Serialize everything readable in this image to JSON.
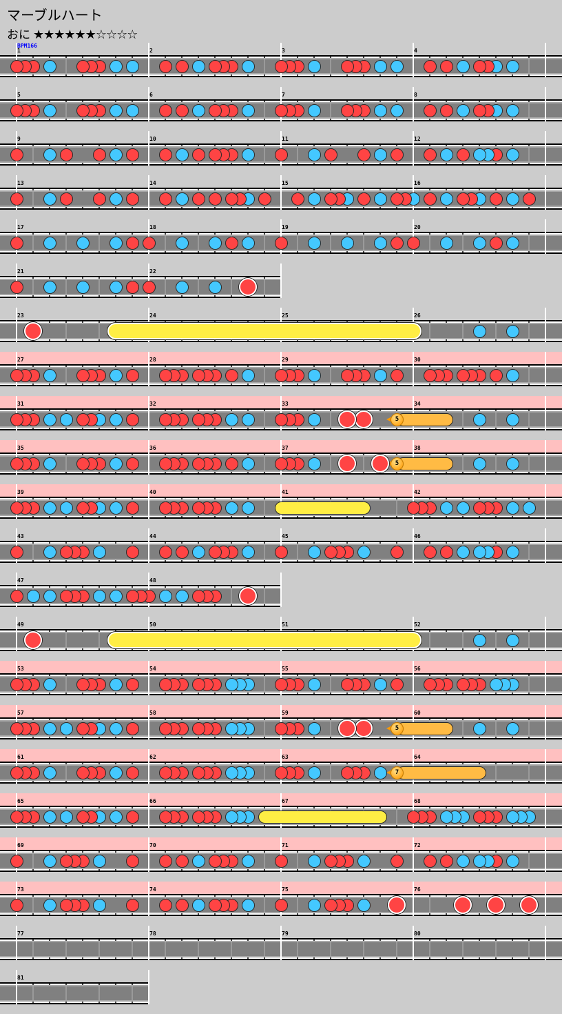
{
  "title": "マーブルハート",
  "difficulty": {
    "label": "おに",
    "stars": "★★★★★★☆☆☆☆",
    "stars_filled": 6,
    "stars_total": 10
  },
  "bpm_label": "BPM166",
  "colors": {
    "don": "#ff4444",
    "ka": "#44c8ff",
    "roll": "#ffee44",
    "balloon": "#ffbb44",
    "gogo": "#ffc0c0",
    "lane": "#808080",
    "background": "#cccccc",
    "bpm": "#0000ff"
  },
  "note_legend": {
    "d": "don",
    "k": "ka",
    "D": "big don",
    "0": "none"
  },
  "rows": [
    {
      "gogo": false,
      "measures": [
        {
          "number": "1",
          "notes": "ddd0k000ddd0k0k0"
        },
        {
          "number": "2",
          "notes": "00d0d0k0ddd0k000"
        },
        {
          "number": "3",
          "notes": "ddd0k000ddd0k0k0"
        },
        {
          "number": "4",
          "notes": "00d0d0k0ddk0k000"
        }
      ]
    },
    {
      "gogo": false,
      "measures": [
        {
          "number": "5",
          "notes": "ddd0k000ddd0k0k0"
        },
        {
          "number": "6",
          "notes": "00d0d0k0ddd0k000"
        },
        {
          "number": "7",
          "notes": "ddd0k000ddd0k0k0"
        },
        {
          "number": "8",
          "notes": "00d0d0k0ddk0k000"
        }
      ]
    },
    {
      "gogo": false,
      "measures": [
        {
          "number": "9",
          "notes": "d000k0d000d0k0d0"
        },
        {
          "number": "10",
          "notes": "00d0k0d0ddd0k000"
        },
        {
          "number": "11",
          "notes": "d000k0d000d0k0d0"
        },
        {
          "number": "12",
          "notes": "00d0k0d0kkd0k000"
        }
      ]
    },
    {
      "gogo": false,
      "measures": [
        {
          "number": "13",
          "notes": "d000k0d000d0k0d0"
        },
        {
          "number": "14",
          "notes": "00d0k0d0d0ddk0d0"
        },
        {
          "number": "15",
          "notes": "00d0k0ddk0d0k0dd"
        },
        {
          "number": "16",
          "notes": "k0d0k0ddk0d0k0d0"
        }
      ]
    },
    {
      "gogo": false,
      "measures": [
        {
          "number": "17",
          "notes": "d000k000k000k0d0"
        },
        {
          "number": "18",
          "notes": "d000k000k0d0k000"
        },
        {
          "number": "19",
          "notes": "d000k000k000k0d0"
        },
        {
          "number": "20",
          "notes": "d000k000k0d0k000"
        }
      ]
    },
    {
      "gogo": false,
      "measures": [
        {
          "number": "21",
          "notes": "d000k000k000k0d0"
        },
        {
          "number": "22",
          "notes": "d000k000k000D000"
        }
      ]
    },
    {
      "gogo": false,
      "measures": [
        {
          "number": "23",
          "notes": "00D0000000000000"
        },
        {
          "number": "24",
          "notes": "0000000000000000"
        },
        {
          "number": "25",
          "notes": "0000000000000000"
        },
        {
          "number": "26",
          "notes": "00000000k000k000"
        }
      ]
    },
    {
      "gogo": true,
      "measures": [
        {
          "number": "27",
          "notes": "ddd0k000ddd0k0d0"
        },
        {
          "number": "28",
          "notes": "00ddd0ddd0d0k000"
        },
        {
          "number": "29",
          "notes": "ddd0k000ddd0k0d0"
        },
        {
          "number": "30",
          "notes": "00ddd0ddd0d0k000"
        }
      ]
    },
    {
      "gogo": true,
      "measures": [
        {
          "number": "31",
          "notes": "ddd0k0k0ddk0k0d0"
        },
        {
          "number": "32",
          "notes": "00ddd0ddd0k0k000"
        },
        {
          "number": "33",
          "notes": "ddd0k000D0D00000"
        },
        {
          "number": "34",
          "notes": "00000000k000k000"
        }
      ]
    },
    {
      "gogo": true,
      "measures": [
        {
          "number": "35",
          "notes": "ddd0k000ddd0k0d0"
        },
        {
          "number": "36",
          "notes": "00ddd0ddd0d0k000"
        },
        {
          "number": "37",
          "notes": "ddd0k000D000D000"
        },
        {
          "number": "38",
          "notes": "00000000k000k000"
        }
      ]
    },
    {
      "gogo": true,
      "measures": [
        {
          "number": "39",
          "notes": "ddd0k0k0ddk0k0d0"
        },
        {
          "number": "40",
          "notes": "00ddd0ddd0k0k000"
        },
        {
          "number": "41",
          "notes": "0000000000000000"
        },
        {
          "number": "42",
          "notes": "ddd0k0k0ddd0k0k0"
        }
      ]
    },
    {
      "gogo": false,
      "measures": [
        {
          "number": "43",
          "notes": "d000k0ddd0k000d0"
        },
        {
          "number": "44",
          "notes": "00d0d0k0ddd0k000"
        },
        {
          "number": "45",
          "notes": "d000k0ddd0k000d0"
        },
        {
          "number": "46",
          "notes": "00d0d0k0kkd0k000"
        }
      ]
    },
    {
      "gogo": false,
      "measures": [
        {
          "number": "47",
          "notes": "d0k0k0ddd0k0k0dd"
        },
        {
          "number": "48",
          "notes": "d0k0k0ddd000D000"
        }
      ]
    },
    {
      "gogo": false,
      "measures": [
        {
          "number": "49",
          "notes": "00D0000000000000"
        },
        {
          "number": "50",
          "notes": "0000000000000000"
        },
        {
          "number": "51",
          "notes": "0000000000000000"
        },
        {
          "number": "52",
          "notes": "00000000k000k000"
        }
      ]
    },
    {
      "gogo": true,
      "measures": [
        {
          "number": "53",
          "notes": "ddd0k000ddd0k0d0"
        },
        {
          "number": "54",
          "notes": "00ddd0ddd0kkk000"
        },
        {
          "number": "55",
          "notes": "ddd0k000ddd0k0d0"
        },
        {
          "number": "56",
          "notes": "00ddd0ddd0kkk000"
        }
      ]
    },
    {
      "gogo": true,
      "measures": [
        {
          "number": "57",
          "notes": "ddd0k0k0ddk0k0d0"
        },
        {
          "number": "58",
          "notes": "00ddd0ddd0kkk000"
        },
        {
          "number": "59",
          "notes": "ddd0k000D0D00000"
        },
        {
          "number": "60",
          "notes": "00000000k000k000"
        }
      ]
    },
    {
      "gogo": true,
      "measures": [
        {
          "number": "61",
          "notes": "ddd0k000ddd0k0d0"
        },
        {
          "number": "62",
          "notes": "00ddd0ddd0kkk000"
        },
        {
          "number": "63",
          "notes": "ddd0k000ddd0k000"
        },
        {
          "number": "64",
          "notes": "0000000000000000"
        }
      ]
    },
    {
      "gogo": true,
      "measures": [
        {
          "number": "65",
          "notes": "ddd0k0k0ddk0k0d0"
        },
        {
          "number": "66",
          "notes": "00ddd0ddd0kkk000"
        },
        {
          "number": "67",
          "notes": "0000000000000000"
        },
        {
          "number": "68",
          "notes": "ddd0kkk0ddd0kkk0"
        }
      ]
    },
    {
      "gogo": true,
      "measures": [
        {
          "number": "69",
          "notes": "d000k0ddd0k000d0"
        },
        {
          "number": "70",
          "notes": "00d0d0k0ddd0k000"
        },
        {
          "number": "71",
          "notes": "d000k0ddd0k000d0"
        },
        {
          "number": "72",
          "notes": "00d0d0k0kkd0k000"
        }
      ]
    },
    {
      "gogo": true,
      "measures": [
        {
          "number": "73",
          "notes": "d000k0ddd0k000d0"
        },
        {
          "number": "74",
          "notes": "00d0d0k0ddd0k000"
        },
        {
          "number": "75",
          "notes": "d000k0ddd0k000D0"
        },
        {
          "number": "76",
          "notes": "000000D000D000D0"
        }
      ]
    },
    {
      "gogo": false,
      "measures": [
        {
          "number": "77",
          "notes": "0000000000000000"
        },
        {
          "number": "78",
          "notes": "0000000000000000"
        },
        {
          "number": "79",
          "notes": "0000000000000000"
        },
        {
          "number": "80",
          "notes": "0000000000000000"
        }
      ]
    },
    {
      "gogo": false,
      "measures": [
        {
          "number": "81",
          "notes": "0000000000000000"
        }
      ]
    }
  ],
  "rolls": [
    {
      "type": "roll-big",
      "start": {
        "measure": "23",
        "pos": 12
      },
      "end": {
        "measure": "26",
        "pos": 0
      }
    },
    {
      "type": "balloon",
      "count": "5",
      "start": {
        "measure": "33",
        "pos": 14
      },
      "end": {
        "measure": "34",
        "pos": 4
      }
    },
    {
      "type": "balloon",
      "count": "5",
      "start": {
        "measure": "37",
        "pos": 14
      },
      "end": {
        "measure": "38",
        "pos": 4
      }
    },
    {
      "type": "roll-small",
      "start": {
        "measure": "41",
        "pos": 0
      },
      "end": {
        "measure": "41",
        "pos": 10
      }
    },
    {
      "type": "roll-big",
      "start": {
        "measure": "49",
        "pos": 12
      },
      "end": {
        "measure": "52",
        "pos": 0
      }
    },
    {
      "type": "balloon",
      "count": "5",
      "start": {
        "measure": "59",
        "pos": 14
      },
      "end": {
        "measure": "60",
        "pos": 4
      }
    },
    {
      "type": "balloon",
      "count": "7",
      "start": {
        "measure": "63",
        "pos": 14
      },
      "end": {
        "measure": "64",
        "pos": 8
      }
    },
    {
      "type": "roll-small",
      "start": {
        "measure": "66",
        "pos": 14
      },
      "end": {
        "measure": "67",
        "pos": 12
      }
    }
  ]
}
